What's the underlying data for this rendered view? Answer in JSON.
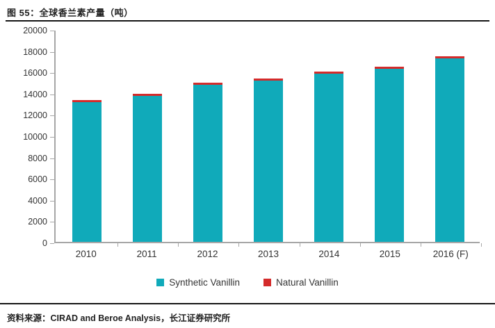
{
  "title": "图 55：全球香兰素产量（吨）",
  "source": "资料来源：CIRAD and Beroe Analysis，长江证券研究所",
  "chart_data": {
    "type": "bar",
    "stacked": true,
    "title": "全球香兰素产量（吨）",
    "categories": [
      "2010",
      "2011",
      "2012",
      "2013",
      "2014",
      "2015",
      "2016 (F)"
    ],
    "series": [
      {
        "name": "Synthetic Vanillin",
        "color": "#10aaba",
        "values": [
          13150,
          13750,
          14800,
          15150,
          15800,
          16250,
          17250
        ]
      },
      {
        "name": "Natural Vanillin",
        "color": "#d42b2b",
        "values": [
          200,
          200,
          200,
          200,
          200,
          200,
          200
        ]
      }
    ],
    "totals": [
      13350,
      13950,
      15000,
      15350,
      16000,
      16450,
      17450
    ],
    "ylim": [
      0,
      20000
    ],
    "ytick_step": 2000,
    "yticks": [
      0,
      2000,
      4000,
      6000,
      8000,
      10000,
      12000,
      14000,
      16000,
      18000,
      20000
    ],
    "grid": false,
    "legend_position": "bottom",
    "axis_color": "#a6a6a6"
  }
}
